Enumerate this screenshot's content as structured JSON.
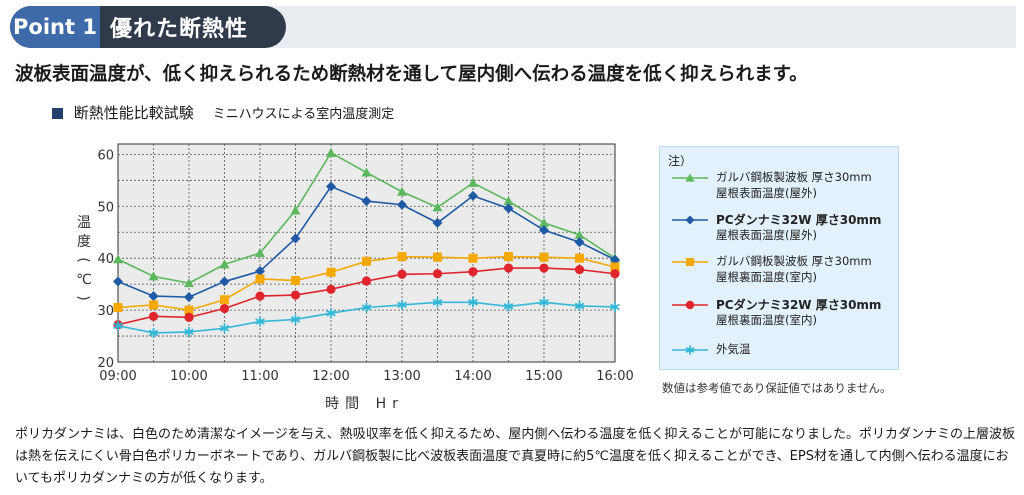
{
  "header": {
    "point_label": "Point 1",
    "title": "優れた断熱性"
  },
  "lead": "波板表面温度が、低く抑えられるため断熱材を通して屋内側へ伝わる温度を低く抑えられます。",
  "subtitle": {
    "main": "断熱性能比較試験",
    "sub": "ミニハウスによる室内温度測定"
  },
  "legend": {
    "note": "注）",
    "items": [
      {
        "line1": "ガルバ鋼板製波板 厚さ30mm",
        "line2": "屋根表面温度(屋外)",
        "bold": false
      },
      {
        "line1": "PCダンナミ32W 厚さ30mm",
        "line2": "屋根表面温度(屋外)",
        "bold": true
      },
      {
        "line1": "ガルバ鋼板製波板 厚さ30mm",
        "line2": "屋根裏面温度(室内)",
        "bold": false
      },
      {
        "line1": "PCダンナミ32W 厚さ30mm",
        "line2": "屋根裏面温度(室内)",
        "bold": true
      },
      {
        "line1": "外気温",
        "line2": "",
        "bold": false
      }
    ]
  },
  "disclaimer": "数値は参考値であり保証値ではありません。",
  "body_text": "ポリカダンナミは、白色のため清潔なイメージを与え、熱吸収率を低く抑えるため、屋内側へ伝わる温度を低く抑えることが可能になりました。ポリカダンナミの上層波板は熱を伝えにくい骨白色ポリカーボネートであり、ガルバ鋼板製に比べ波板表面温度で真夏時に約5℃温度を低く抑えることができ、EPS材を通して内側へ伝わる温度においてもポリカダンナミの方が低くなります。",
  "chart_data": {
    "type": "line",
    "title": "断熱性能比較試験",
    "xlabel": "時間 Hr",
    "ylabel": "温度(℃)",
    "x": [
      "9:00",
      "9:30",
      "10:00",
      "10:30",
      "11:00",
      "11:30",
      "12:00",
      "12:30",
      "13:00",
      "13:30",
      "14:00",
      "14:30",
      "15:00",
      "15:30",
      "16:00"
    ],
    "x_tick_labels": [
      "09:00",
      "10:00",
      "11:00",
      "12:00",
      "13:00",
      "14:00",
      "15:00",
      "16:00"
    ],
    "y_ticks": [
      20,
      30,
      40,
      50,
      60
    ],
    "ylim": [
      20,
      62
    ],
    "grid": true,
    "series": [
      {
        "name": "ガルバ鋼板製波板 厚さ30mm 屋根表面温度(屋外)",
        "color": "#5cb85c",
        "marker": "triangle",
        "values": [
          39.8,
          36.5,
          35.2,
          38.8,
          41.0,
          49.2,
          60.3,
          56.5,
          52.8,
          49.8,
          54.5,
          51.0,
          46.8,
          44.5,
          40.0
        ]
      },
      {
        "name": "PCダンナミ32W 厚さ30mm 屋根表面温度(屋外)",
        "color": "#1f5aa6",
        "marker": "diamond",
        "values": [
          35.5,
          32.7,
          32.5,
          35.5,
          37.5,
          43.8,
          53.8,
          51.0,
          50.3,
          46.8,
          52.0,
          49.6,
          45.4,
          43.1,
          39.7
        ]
      },
      {
        "name": "ガルバ鋼板製波板 厚さ30mm 屋根裏面温度(室内)",
        "color": "#f5a800",
        "marker": "square",
        "values": [
          30.5,
          31.0,
          30.0,
          32.0,
          36.0,
          35.7,
          37.3,
          39.4,
          40.3,
          40.2,
          40.0,
          40.3,
          40.2,
          40.0,
          38.3
        ]
      },
      {
        "name": "PCダンナミ32W 厚さ30mm 屋根裏面温度(室内)",
        "color": "#e0242b",
        "marker": "circle",
        "values": [
          27.2,
          28.8,
          28.6,
          30.3,
          32.7,
          32.9,
          34.0,
          35.6,
          36.9,
          37.0,
          37.4,
          38.1,
          38.1,
          37.8,
          37.0
        ]
      },
      {
        "name": "外気温",
        "color": "#33b8d8",
        "marker": "asterisk",
        "values": [
          27.0,
          25.6,
          25.8,
          26.5,
          27.8,
          28.2,
          29.4,
          30.5,
          31.0,
          31.5,
          31.5,
          30.7,
          31.5,
          30.8,
          30.6
        ]
      }
    ]
  }
}
